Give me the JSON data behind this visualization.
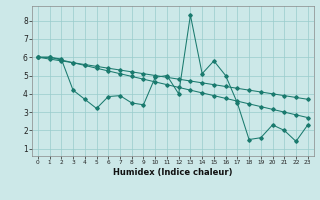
{
  "xlabel": "Humidex (Indice chaleur)",
  "background_color": "#cce8e8",
  "grid_color": "#99cccc",
  "line_color": "#1a7a6e",
  "xlim": [
    -0.5,
    23.5
  ],
  "ylim": [
    0.6,
    8.8
  ],
  "xticks": [
    0,
    1,
    2,
    3,
    4,
    5,
    6,
    7,
    8,
    9,
    10,
    11,
    12,
    13,
    14,
    15,
    16,
    17,
    18,
    19,
    20,
    21,
    22,
    23
  ],
  "yticks": [
    1,
    2,
    3,
    4,
    5,
    6,
    7,
    8
  ],
  "line1_x": [
    0,
    1,
    2,
    3,
    4,
    5,
    6,
    7,
    8,
    9,
    10,
    11,
    12,
    13,
    14,
    15,
    16,
    17,
    18,
    19,
    20,
    21,
    22,
    23
  ],
  "line1_y": [
    6.0,
    6.0,
    5.85,
    5.7,
    5.55,
    5.4,
    5.25,
    5.1,
    4.95,
    4.8,
    4.65,
    4.5,
    4.35,
    4.2,
    4.05,
    3.9,
    3.75,
    3.6,
    3.45,
    3.3,
    3.15,
    3.0,
    2.85,
    2.7
  ],
  "line2_x": [
    0,
    1,
    2,
    3,
    4,
    5,
    6,
    7,
    8,
    9,
    10,
    11,
    12,
    13,
    14,
    15,
    16,
    17,
    18,
    19,
    20,
    21,
    22,
    23
  ],
  "line2_y": [
    6.0,
    5.9,
    5.8,
    5.7,
    5.6,
    5.5,
    5.4,
    5.3,
    5.2,
    5.1,
    5.0,
    4.9,
    4.8,
    4.7,
    4.6,
    4.5,
    4.4,
    4.3,
    4.2,
    4.1,
    4.0,
    3.9,
    3.8,
    3.7
  ],
  "line3_x": [
    0,
    1,
    2,
    3,
    4,
    5,
    6,
    7,
    8,
    9,
    10,
    11,
    12,
    13,
    14,
    15,
    16,
    17,
    18,
    19,
    20,
    21,
    22,
    23
  ],
  "line3_y": [
    6.0,
    6.0,
    5.9,
    4.2,
    3.7,
    3.2,
    3.85,
    3.9,
    3.5,
    3.4,
    4.9,
    5.0,
    4.0,
    8.3,
    5.1,
    5.8,
    5.0,
    3.5,
    1.5,
    1.6,
    2.3,
    2.0,
    1.4,
    2.3
  ]
}
